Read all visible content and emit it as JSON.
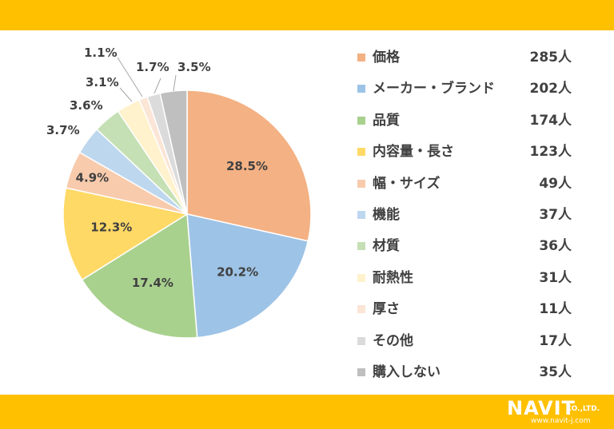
{
  "chart_data": {
    "type": "pie",
    "categories": [
      "価格",
      "メーカー・ブランド",
      "品質",
      "内容量・長さ",
      "幅・サイズ",
      "機能",
      "材質",
      "耐熱性",
      "厚さ",
      "その他",
      "購入しない"
    ],
    "values": [
      285,
      202,
      174,
      123,
      49,
      37,
      36,
      31,
      11,
      17,
      35
    ],
    "percent_labels": [
      "28.5%",
      "20.2%",
      "17.4%",
      "12.3%",
      "4.9%",
      "3.7%",
      "3.6%",
      "3.1%",
      "1.1%",
      "1.7%",
      "3.5%"
    ],
    "count_labels": [
      "285人",
      "202人",
      "174人",
      "123人",
      "49人",
      "37人",
      "36人",
      "31人",
      "11人",
      "17人",
      "35人"
    ],
    "colors": [
      "#F4B183",
      "#9DC3E6",
      "#A9D18E",
      "#FFD966",
      "#F8CBAD",
      "#BDD7EE",
      "#C5E0B4",
      "#FFF2CC",
      "#FBE5D6",
      "#DBDBDB",
      "#BFBFBF"
    ],
    "legend_position": "right"
  },
  "footer": {
    "logo_main": "NAVIT",
    "logo_sub": "CO.,LTD.",
    "logo_url": "www.navit-j.com"
  }
}
